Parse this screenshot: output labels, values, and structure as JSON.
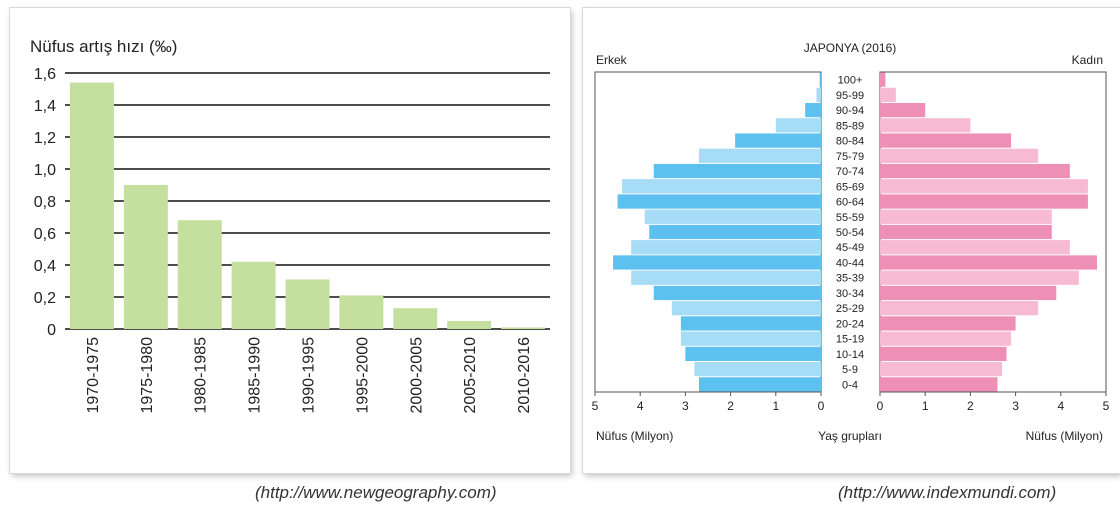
{
  "chart_data": [
    {
      "type": "bar",
      "title": "Nüfus artış hızı (‰)",
      "categories": [
        "1970-1975",
        "1975-1980",
        "1980-1985",
        "1985-1990",
        "1990-1995",
        "1995-2000",
        "2000-2005",
        "2005-2010",
        "2010-2016"
      ],
      "values": [
        1.54,
        0.9,
        0.68,
        0.42,
        0.31,
        0.21,
        0.13,
        0.05,
        0.01
      ],
      "yticks": [
        "1,6",
        "1,4",
        "1,2",
        "1,0",
        "0,8",
        "0,6",
        "0,4",
        "0,2",
        "0"
      ],
      "ylim": [
        0,
        1.6
      ],
      "grid": true,
      "bar_color": "#c5df9f",
      "source": "(http://www.newgeography.com)"
    },
    {
      "type": "population-pyramid",
      "title": "JAPONYA (2016)",
      "left_label": "Erkek",
      "right_label": "Kadın",
      "age_groups": [
        "100+",
        "95-99",
        "90-94",
        "85-89",
        "80-84",
        "75-79",
        "70-74",
        "65-69",
        "60-64",
        "55-59",
        "50-54",
        "45-49",
        "40-44",
        "35-39",
        "30-34",
        "25-29",
        "20-24",
        "15-19",
        "10-14",
        "5-9",
        "0-4"
      ],
      "male": [
        0.03,
        0.1,
        0.35,
        1.0,
        1.9,
        2.7,
        3.7,
        4.4,
        4.5,
        3.9,
        3.8,
        4.2,
        4.6,
        4.2,
        3.7,
        3.3,
        3.1,
        3.1,
        3.0,
        2.8,
        2.7
      ],
      "female": [
        0.12,
        0.35,
        1.0,
        2.0,
        2.9,
        3.5,
        4.2,
        4.6,
        4.6,
        3.8,
        3.8,
        4.2,
        4.8,
        4.4,
        3.9,
        3.5,
        3.0,
        2.9,
        2.8,
        2.7,
        2.6
      ],
      "axis_ticks": [
        "5",
        "4",
        "3",
        "2",
        "1",
        "0"
      ],
      "axis_ticks_right": [
        "0",
        "1",
        "2",
        "3",
        "4",
        "5"
      ],
      "xmax": 5,
      "xlabel_left": "Nüfus (Milyon)",
      "xlabel_center": "Yaş grupları",
      "xlabel_right": "Nüfus (Milyon)",
      "colors": {
        "male_dark": "#5cc1ee",
        "male_light": "#a6dcf5",
        "female_dark": "#ee8fb6",
        "female_light": "#f6bad2"
      },
      "source": "(http://www.indexmundi.com)"
    }
  ]
}
